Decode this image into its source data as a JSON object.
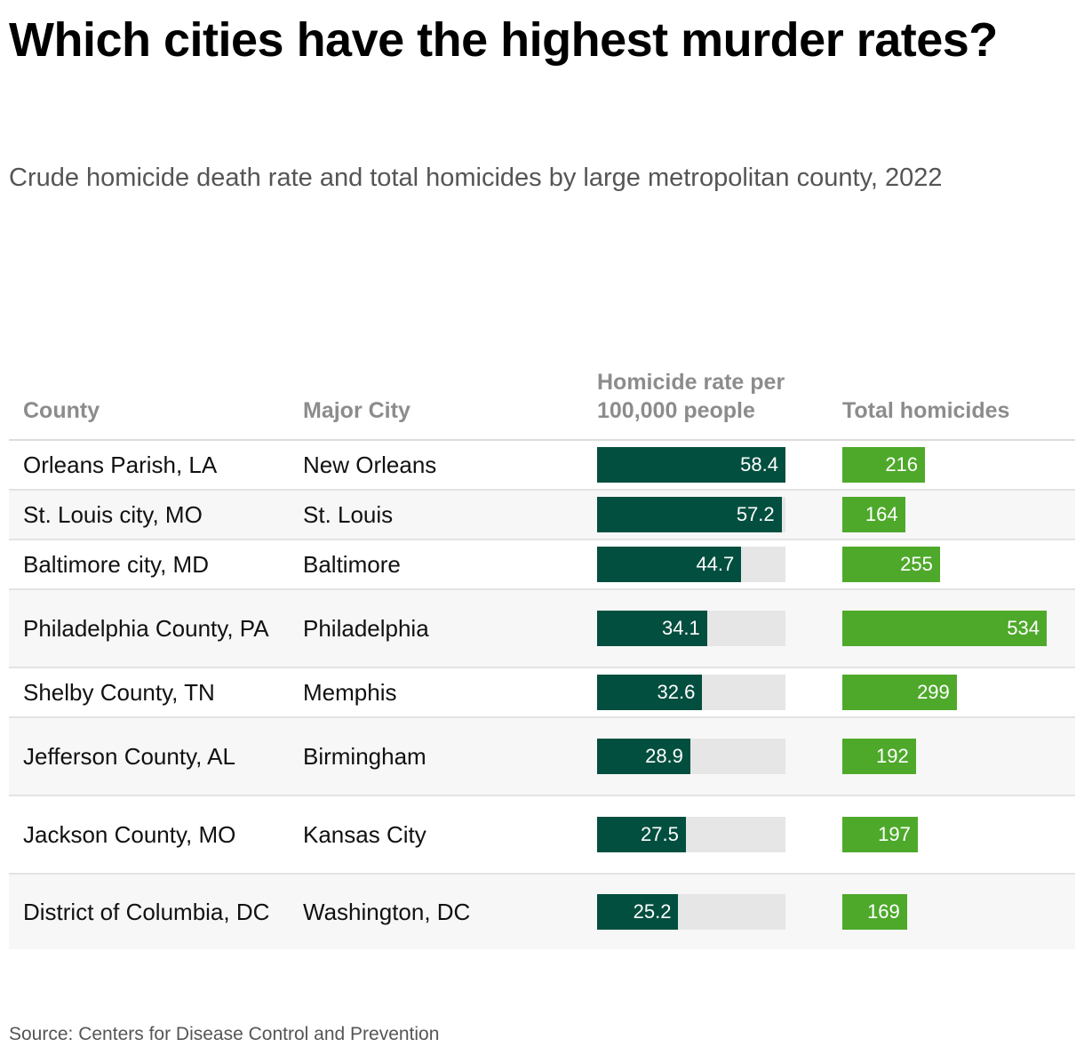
{
  "title": "Which cities have the highest murder rates?",
  "subtitle": "Crude homicide death rate and total homicides by large metropolitan county, 2022",
  "source": "Source: Centers for Disease Control and Prevention",
  "colors": {
    "rate_bar": "#034f3f",
    "total_bar": "#4ea92b",
    "track": "#e6e6e6"
  },
  "chart_data": {
    "type": "table",
    "columns": [
      "County",
      "Major City",
      "Homicide rate per 100,000 people",
      "Total homicides"
    ],
    "rate_max": 58.4,
    "total_max": 534,
    "rows": [
      {
        "county": "Orleans Parish, LA",
        "city": "New Orleans",
        "rate": 58.4,
        "rate_label": "58.4",
        "total": 216,
        "total_label": "216"
      },
      {
        "county": "St. Louis city, MO",
        "city": "St. Louis",
        "rate": 57.2,
        "rate_label": "57.2",
        "total": 164,
        "total_label": "164"
      },
      {
        "county": "Baltimore city, MD",
        "city": "Baltimore",
        "rate": 44.7,
        "rate_label": "44.7",
        "total": 255,
        "total_label": "255"
      },
      {
        "county": "Philadelphia County, PA",
        "city": "Philadelphia",
        "rate": 34.1,
        "rate_label": "34.1",
        "total": 534,
        "total_label": "534"
      },
      {
        "county": "Shelby County, TN",
        "city": "Memphis",
        "rate": 32.6,
        "rate_label": "32.6",
        "total": 299,
        "total_label": "299"
      },
      {
        "county": "Jefferson County, AL",
        "city": "Birmingham",
        "rate": 28.9,
        "rate_label": "28.9",
        "total": 192,
        "total_label": "192"
      },
      {
        "county": "Jackson County, MO",
        "city": "Kansas City",
        "rate": 27.5,
        "rate_label": "27.5",
        "total": 197,
        "total_label": "197"
      },
      {
        "county": "District of Columbia, DC",
        "city": "Washington, DC",
        "rate": 25.2,
        "rate_label": "25.2",
        "total": 169,
        "total_label": "169"
      }
    ]
  }
}
